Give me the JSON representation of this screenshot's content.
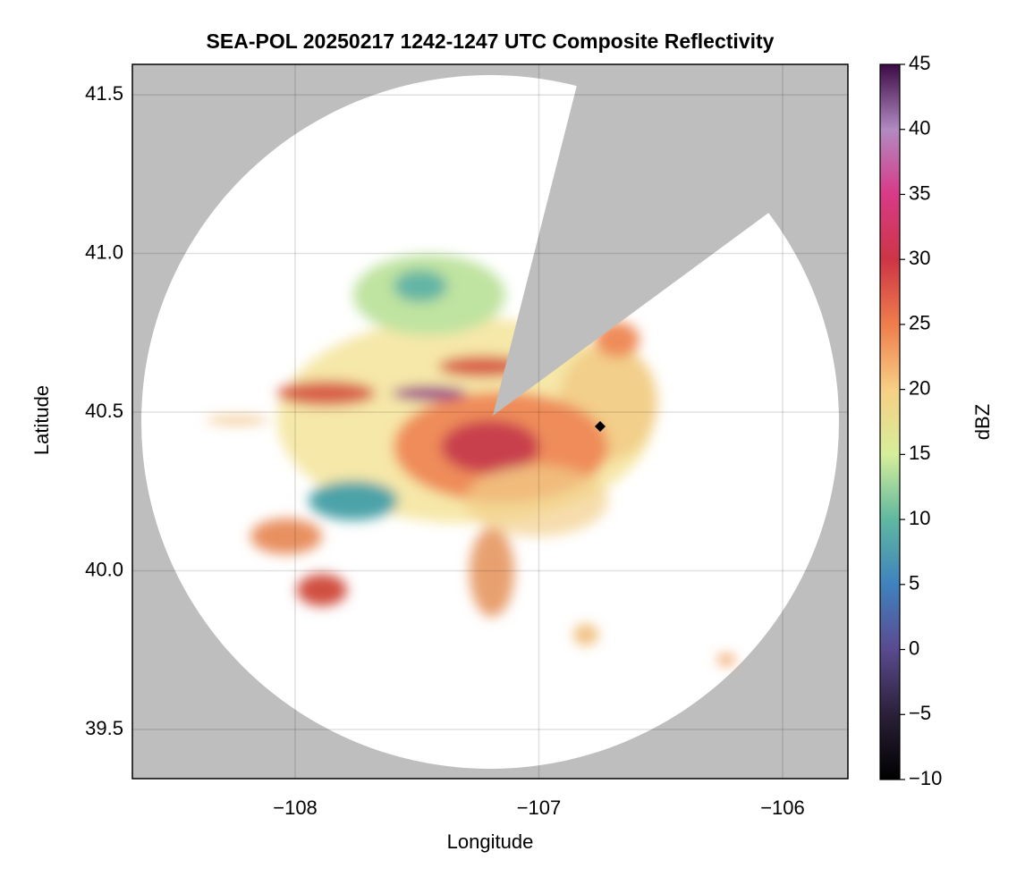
{
  "chart_data": {
    "type": "heatmap",
    "title": "SEA-POL 20250217 1242-1247 UTC Composite Reflectivity",
    "x_label": "Longitude",
    "y_label": "Latitude",
    "xlim": [
      -108.668,
      -105.732
    ],
    "ylim": [
      39.345,
      41.596
    ],
    "xticks": [
      {
        "value": -108,
        "label": "−108"
      },
      {
        "value": -107,
        "label": "−107"
      },
      {
        "value": -106,
        "label": "−106"
      }
    ],
    "yticks": [
      39.5,
      {
        "value": 40,
        "label": "40.0"
      },
      40.5,
      {
        "value": 41,
        "label": "41.0"
      },
      41.5
    ],
    "grid": true,
    "colorbar": {
      "label": "dBZ",
      "lim": [
        -10,
        45
      ],
      "ticks": [
        {
          "value": -10,
          "label": "−10"
        },
        {
          "value": -5,
          "label": "−5"
        },
        0,
        5,
        10,
        15,
        20,
        25,
        30,
        35,
        40,
        45
      ],
      "colors": [
        "#000000",
        "#2a2038",
        "#5a4a8f",
        "#3f82be",
        "#5fb8a0",
        "#d6ee9a",
        "#f7cf84",
        "#ef7d4c",
        "#cd3546",
        "#d83a86",
        "#b18ac2",
        "#3b0a45"
      ]
    }
  }
}
